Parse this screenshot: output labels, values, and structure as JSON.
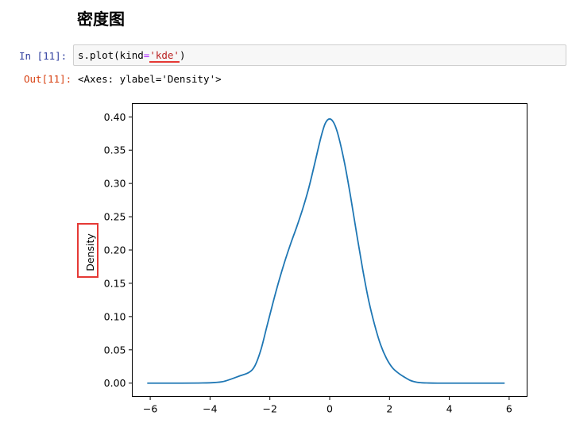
{
  "heading": "密度图",
  "cell": {
    "in_prompt": "In  [11]:",
    "code_prefix": "s.plot(kind",
    "code_op": "=",
    "code_string": "'kde'",
    "code_suffix": ")",
    "out_prompt": "Out[11]:",
    "output_repr": "<Axes: ylabel='Density'>"
  },
  "chart_data": {
    "type": "line",
    "title": "",
    "xlabel": "",
    "ylabel": "Density",
    "xlim": [
      -6.6,
      6.6
    ],
    "ylim": [
      -0.02,
      0.42
    ],
    "xticks": [
      -6,
      -4,
      -2,
      0,
      2,
      4,
      6
    ],
    "xtick_labels": [
      "−6",
      "−4",
      "−2",
      "0",
      "2",
      "4",
      "6"
    ],
    "yticks": [
      0.0,
      0.05,
      0.1,
      0.15,
      0.2,
      0.25,
      0.3,
      0.35,
      0.4
    ],
    "ytick_labels": [
      "0.00",
      "0.05",
      "0.10",
      "0.15",
      "0.20",
      "0.25",
      "0.30",
      "0.35",
      "0.40"
    ],
    "grid": false,
    "legend": "none",
    "series": [
      {
        "color": "#1f77b4",
        "x": [
          -6.1,
          -5.0,
          -4.0,
          -3.6,
          -3.3,
          -3.0,
          -2.7,
          -2.5,
          -2.3,
          -2.1,
          -1.9,
          -1.7,
          -1.5,
          -1.3,
          -1.1,
          -0.9,
          -0.7,
          -0.5,
          -0.3,
          -0.15,
          0.0,
          0.15,
          0.3,
          0.5,
          0.7,
          0.9,
          1.1,
          1.3,
          1.5,
          1.7,
          1.9,
          2.1,
          2.3,
          2.5,
          2.7,
          2.9,
          3.1,
          3.3,
          3.6,
          4.0,
          5.0,
          5.85
        ],
        "y": [
          0.0,
          0.0,
          0.0005,
          0.002,
          0.006,
          0.011,
          0.016,
          0.026,
          0.05,
          0.085,
          0.12,
          0.153,
          0.183,
          0.21,
          0.235,
          0.262,
          0.293,
          0.33,
          0.368,
          0.39,
          0.397,
          0.39,
          0.37,
          0.33,
          0.28,
          0.225,
          0.172,
          0.125,
          0.088,
          0.058,
          0.037,
          0.023,
          0.015,
          0.009,
          0.004,
          0.0015,
          0.0005,
          0.0002,
          0.0,
          0.0,
          0.0,
          0.0
        ]
      }
    ]
  }
}
